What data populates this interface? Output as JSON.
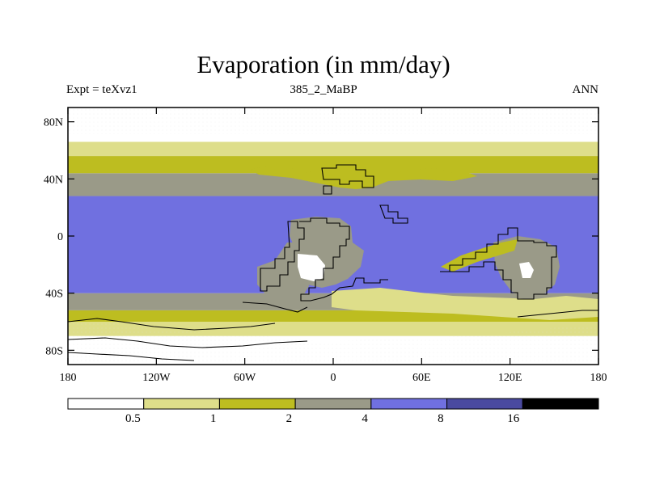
{
  "chart_data": {
    "type": "heatmap",
    "title": "Evaporation (in mm/day)",
    "left_label": "Expt = teXvz1",
    "center_label": "385_2_MaBP",
    "right_label": "ANN",
    "xlim": [
      -180,
      180
    ],
    "ylim": [
      -90,
      90
    ],
    "x_ticks": [
      {
        "value": -180,
        "label": "180"
      },
      {
        "value": -120,
        "label": "120W"
      },
      {
        "value": -60,
        "label": "60W"
      },
      {
        "value": 0,
        "label": "0"
      },
      {
        "value": 60,
        "label": "60E"
      },
      {
        "value": 120,
        "label": "120E"
      },
      {
        "value": 180,
        "label": "180"
      }
    ],
    "y_ticks": [
      {
        "value": 80,
        "label": "80N"
      },
      {
        "value": 40,
        "label": "40N"
      },
      {
        "value": 0,
        "label": "0"
      },
      {
        "value": -40,
        "label": "40S"
      },
      {
        "value": -80,
        "label": "80S"
      }
    ],
    "colorbar": {
      "levels": [
        "0.5",
        "1",
        "2",
        "4",
        "8",
        "16"
      ],
      "colors": [
        "#ffffff",
        "#dede8a",
        "#bdbd20",
        "#9a9a88",
        "#7070e0",
        "#4a4aa0",
        "#000000"
      ]
    },
    "zonal_bands": [
      {
        "lat": [
          -90,
          -82
        ],
        "bin": 0
      },
      {
        "lat": [
          -82,
          -70
        ],
        "bin": 0
      },
      {
        "lat": [
          -70,
          -60
        ],
        "bin": 1
      },
      {
        "lat": [
          -60,
          -52
        ],
        "bin": 2
      },
      {
        "lat": [
          -52,
          -40
        ],
        "bin": 3
      },
      {
        "lat": [
          -40,
          28
        ],
        "bin": 4
      },
      {
        "lat": [
          28,
          44
        ],
        "bin": 3
      },
      {
        "lat": [
          44,
          56
        ],
        "bin": 2
      },
      {
        "lat": [
          56,
          66
        ],
        "bin": 1
      },
      {
        "lat": [
          66,
          90
        ],
        "bin": 0
      }
    ]
  }
}
